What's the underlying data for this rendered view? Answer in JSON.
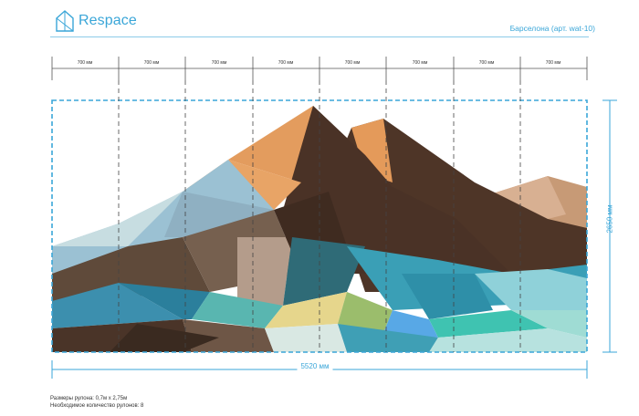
{
  "logo": {
    "text": "Respace"
  },
  "product": {
    "title": "Барселона (арт. wat-10)"
  },
  "rolls": {
    "labels": [
      "700 мм",
      "700 мм",
      "700 мм",
      "700 мм",
      "700 мм",
      "700 мм",
      "700 мм",
      "700 мм"
    ]
  },
  "dimensions": {
    "width": "5520 мм",
    "height": "2650 мм"
  },
  "footer": {
    "roll_size": "Размеры рулона: 0,7м х 2,75м",
    "roll_count": "Необходимое количество рулонов: 8"
  },
  "colors": {
    "accent": "#3aa6d8",
    "guide": "#4b4b4b"
  }
}
